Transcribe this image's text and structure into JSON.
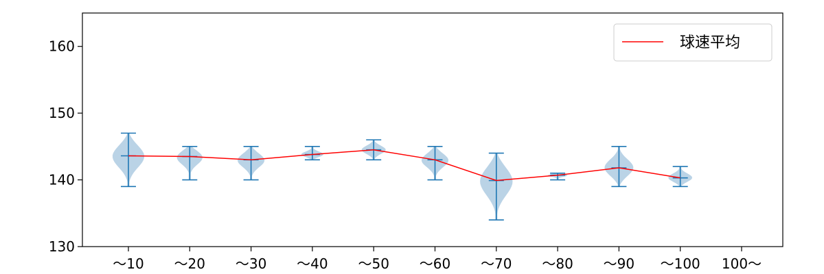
{
  "chart_data": {
    "type": "violin",
    "categories": [
      "〜10",
      "〜20",
      "〜30",
      "〜40",
      "〜50",
      "〜60",
      "〜70",
      "〜80",
      "〜90",
      "〜100",
      "100〜"
    ],
    "ylim": [
      130,
      165
    ],
    "yticks": [
      130,
      140,
      150,
      160
    ],
    "legend_placement": "top-right",
    "grid": false,
    "series": [
      {
        "name": "球速平均",
        "type": "line",
        "color": "#ff0000",
        "values": [
          143.6,
          143.5,
          143.0,
          143.8,
          144.5,
          143.0,
          139.9,
          140.7,
          141.8,
          140.3,
          null
        ]
      }
    ],
    "violins": [
      {
        "category": "〜10",
        "min": 139,
        "max": 147,
        "mean": 143.6
      },
      {
        "category": "〜20",
        "min": 140,
        "max": 145,
        "mean": 143.5
      },
      {
        "category": "〜30",
        "min": 140,
        "max": 145,
        "mean": 143.0
      },
      {
        "category": "〜40",
        "min": 143,
        "max": 145,
        "mean": 143.8
      },
      {
        "category": "〜50",
        "min": 143,
        "max": 146,
        "mean": 144.5
      },
      {
        "category": "〜60",
        "min": 140,
        "max": 145,
        "mean": 143.0
      },
      {
        "category": "〜70",
        "min": 134,
        "max": 144,
        "mean": 139.9
      },
      {
        "category": "〜80",
        "min": 140,
        "max": 141,
        "mean": 140.7
      },
      {
        "category": "〜90",
        "min": 139,
        "max": 145,
        "mean": 141.8
      },
      {
        "category": "〜100",
        "min": 139,
        "max": 142,
        "mean": 140.3
      },
      {
        "category": "100〜",
        "min": null,
        "max": null,
        "mean": null
      }
    ],
    "colors": {
      "violin_fill": "#a9c8e0",
      "violin_line": "#1f77b4",
      "mean_line": "#ff0000",
      "axis": "#000000"
    }
  }
}
